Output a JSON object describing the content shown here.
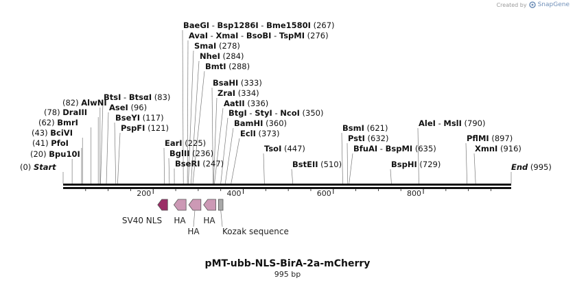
{
  "watermark": {
    "text": "Created by",
    "brand": "SnapGene"
  },
  "sequence": {
    "length": 995,
    "start_label": "Start",
    "end_label": "End",
    "end_position": "(995)",
    "start_position": "(0)"
  },
  "ruler": {
    "ticks": [
      {
        "value": 200,
        "label": "200"
      },
      {
        "value": 400,
        "label": "400"
      },
      {
        "value": 600,
        "label": "600"
      },
      {
        "value": 800,
        "label": "800"
      }
    ]
  },
  "site_groups": [
    {
      "sites": [
        {
          "name": "Bpu10I",
          "position": 20
        }
      ],
      "pos_text": "(20)",
      "pos_side": "left"
    },
    {
      "sites": [
        {
          "name": "PfoI",
          "position": 41
        }
      ],
      "pos_text": "(41)",
      "pos_side": "left"
    },
    {
      "sites": [
        {
          "name": "BciVI",
          "position": 43
        }
      ],
      "pos_text": "(43)",
      "pos_side": "left"
    },
    {
      "sites": [
        {
          "name": "BmrI",
          "position": 62
        }
      ],
      "pos_text": "(62)",
      "pos_side": "left"
    },
    {
      "sites": [
        {
          "name": "DraIII",
          "position": 78
        }
      ],
      "pos_text": "(78)",
      "pos_side": "left"
    },
    {
      "sites": [
        {
          "name": "AlwNI",
          "position": 82
        }
      ],
      "pos_text": "(82)",
      "pos_side": "left"
    },
    {
      "sites": [
        {
          "name": "BtsI",
          "position": 83
        },
        {
          "name": "BtsαI",
          "position": 83
        }
      ],
      "pos_text": "(83)",
      "pos_side": "right"
    },
    {
      "sites": [
        {
          "name": "AseI",
          "position": 96
        }
      ],
      "pos_text": "(96)",
      "pos_side": "right"
    },
    {
      "sites": [
        {
          "name": "BseYI",
          "position": 117
        }
      ],
      "pos_text": "(117)",
      "pos_side": "right"
    },
    {
      "sites": [
        {
          "name": "PspFI",
          "position": 121
        }
      ],
      "pos_text": "(121)",
      "pos_side": "right"
    },
    {
      "sites": [
        {
          "name": "EarI",
          "position": 225
        }
      ],
      "pos_text": "(225)",
      "pos_side": "right"
    },
    {
      "sites": [
        {
          "name": "BglII",
          "position": 236
        }
      ],
      "pos_text": "(236)",
      "pos_side": "right"
    },
    {
      "sites": [
        {
          "name": "BseRI",
          "position": 247
        }
      ],
      "pos_text": "(247)",
      "pos_side": "right"
    },
    {
      "sites": [
        {
          "name": "BaeGI",
          "position": 267
        },
        {
          "name": "Bsp1286I",
          "position": 267
        },
        {
          "name": "Bme1580I",
          "position": 267
        }
      ],
      "pos_text": "(267)",
      "pos_side": "right"
    },
    {
      "sites": [
        {
          "name": "AvaI",
          "position": 276
        },
        {
          "name": "XmaI",
          "position": 276
        },
        {
          "name": "BsoBI",
          "position": 276
        },
        {
          "name": "TspMI",
          "position": 276
        }
      ],
      "pos_text": "(276)",
      "pos_side": "right"
    },
    {
      "sites": [
        {
          "name": "SmaI",
          "position": 278
        }
      ],
      "pos_text": "(278)",
      "pos_side": "right"
    },
    {
      "sites": [
        {
          "name": "NheI",
          "position": 284
        }
      ],
      "pos_text": "(284)",
      "pos_side": "right"
    },
    {
      "sites": [
        {
          "name": "BmtI",
          "position": 288
        }
      ],
      "pos_text": "(288)",
      "pos_side": "right"
    },
    {
      "sites": [
        {
          "name": "BsaHI",
          "position": 333
        }
      ],
      "pos_text": "(333)",
      "pos_side": "right"
    },
    {
      "sites": [
        {
          "name": "ZraI",
          "position": 334
        }
      ],
      "pos_text": "(334)",
      "pos_side": "right"
    },
    {
      "sites": [
        {
          "name": "AatII",
          "position": 336
        }
      ],
      "pos_text": "(336)",
      "pos_side": "right"
    },
    {
      "sites": [
        {
          "name": "BtgI",
          "position": 350
        },
        {
          "name": "StyI",
          "position": 350
        },
        {
          "name": "NcoI",
          "position": 350
        }
      ],
      "pos_text": "(350)",
      "pos_side": "right"
    },
    {
      "sites": [
        {
          "name": "BamHI",
          "position": 360
        }
      ],
      "pos_text": "(360)",
      "pos_side": "right"
    },
    {
      "sites": [
        {
          "name": "EclI",
          "position": 373
        }
      ],
      "pos_text": "(373)",
      "pos_side": "right"
    },
    {
      "sites": [
        {
          "name": "TsoI",
          "position": 447
        }
      ],
      "pos_text": "(447)",
      "pos_side": "right"
    },
    {
      "sites": [
        {
          "name": "BstEII",
          "position": 510
        }
      ],
      "pos_text": "(510)",
      "pos_side": "right"
    },
    {
      "sites": [
        {
          "name": "BsmI",
          "position": 621
        }
      ],
      "pos_text": "(621)",
      "pos_side": "right"
    },
    {
      "sites": [
        {
          "name": "PstI",
          "position": 632
        }
      ],
      "pos_text": "(632)",
      "pos_side": "right"
    },
    {
      "sites": [
        {
          "name": "BfuAI",
          "position": 635
        },
        {
          "name": "BspMI",
          "position": 635
        }
      ],
      "pos_text": "(635)",
      "pos_side": "right"
    },
    {
      "sites": [
        {
          "name": "BspHI",
          "position": 729
        }
      ],
      "pos_text": "(729)",
      "pos_side": "right"
    },
    {
      "sites": [
        {
          "name": "AleI",
          "position": 790
        },
        {
          "name": "MslI",
          "position": 790
        }
      ],
      "pos_text": "(790)",
      "pos_side": "right"
    },
    {
      "sites": [
        {
          "name": "PflMI",
          "position": 897
        }
      ],
      "pos_text": "(897)",
      "pos_side": "right"
    },
    {
      "sites": [
        {
          "name": "XmnI",
          "position": 916
        }
      ],
      "pos_text": "(916)",
      "pos_side": "right"
    }
  ],
  "features": [
    {
      "name": "SV40 NLS",
      "start": 210,
      "end": 232,
      "direction": "reverse",
      "color": "#9b2d66",
      "shape": "arrow"
    },
    {
      "name": "HA",
      "start": 246,
      "end": 273,
      "direction": "reverse",
      "color": "#cc99b5",
      "shape": "arrow"
    },
    {
      "name": "HA",
      "start": 279,
      "end": 306,
      "direction": "reverse",
      "color": "#cc99b5",
      "shape": "arrow"
    },
    {
      "name": "HA",
      "start": 312,
      "end": 339,
      "direction": "reverse",
      "color": "#cc99b5",
      "shape": "arrow"
    },
    {
      "name": "Kozak sequence",
      "start": 345,
      "end": 355,
      "direction": "none",
      "color": "#a9a9a9",
      "shape": "box"
    }
  ],
  "plasmid": {
    "name": "pMT-ubb-NLS-BirA-2a-mCherry",
    "size_text": "995 bp"
  }
}
